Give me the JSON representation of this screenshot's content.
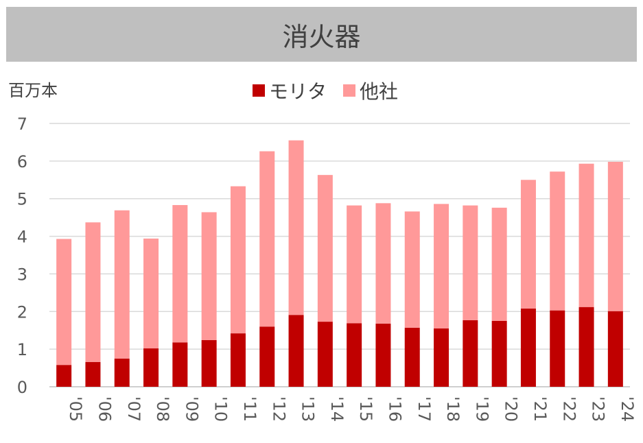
{
  "chart_data": {
    "type": "bar",
    "stacked": true,
    "title": "消火器",
    "ylabel": "百万本",
    "xlabel": "",
    "ylim": [
      0,
      7
    ],
    "yticks": [
      0,
      1,
      2,
      3,
      4,
      5,
      6,
      7
    ],
    "grid": true,
    "legend_position": "top-center",
    "categories": [
      "'05",
      "'06",
      "'07",
      "'08",
      "'09",
      "'10",
      "'11",
      "'12",
      "'13",
      "'14",
      "'15",
      "'16",
      "'17",
      "'18",
      "'19",
      "'20",
      "'21",
      "'22",
      "'23",
      "'24"
    ],
    "series": [
      {
        "name": "モリタ",
        "color": "#c00000",
        "values": [
          0.58,
          0.66,
          0.75,
          1.02,
          1.18,
          1.24,
          1.42,
          1.6,
          1.91,
          1.73,
          1.69,
          1.68,
          1.57,
          1.55,
          1.77,
          1.75,
          2.08,
          2.03,
          2.12,
          2.01
        ]
      },
      {
        "name": "他社",
        "color": "#ff9999",
        "values": [
          3.35,
          3.71,
          3.94,
          2.92,
          3.65,
          3.4,
          3.91,
          4.66,
          4.64,
          3.9,
          3.13,
          3.2,
          3.09,
          3.31,
          3.05,
          3.01,
          3.42,
          3.69,
          3.81,
          3.97
        ]
      }
    ]
  }
}
